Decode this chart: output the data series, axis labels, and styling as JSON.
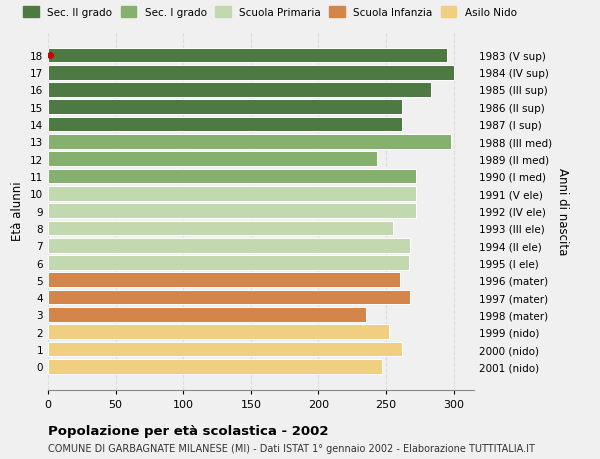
{
  "ages": [
    18,
    17,
    16,
    15,
    14,
    13,
    12,
    11,
    10,
    9,
    8,
    7,
    6,
    5,
    4,
    3,
    2,
    1,
    0
  ],
  "years": [
    "1983 (V sup)",
    "1984 (IV sup)",
    "1985 (III sup)",
    "1986 (II sup)",
    "1987 (I sup)",
    "1988 (III med)",
    "1989 (II med)",
    "1990 (I med)",
    "1991 (V ele)",
    "1992 (IV ele)",
    "1993 (III ele)",
    "1994 (II ele)",
    "1995 (I ele)",
    "1996 (mater)",
    "1997 (mater)",
    "1998 (mater)",
    "1999 (nido)",
    "2000 (nido)",
    "2001 (nido)"
  ],
  "values": [
    295,
    300,
    283,
    262,
    262,
    298,
    243,
    272,
    272,
    272,
    255,
    268,
    267,
    260,
    268,
    235,
    252,
    262,
    247
  ],
  "colors": [
    "#4d7a42",
    "#4d7a42",
    "#4d7a42",
    "#4d7a42",
    "#4d7a42",
    "#85b06e",
    "#85b06e",
    "#85b06e",
    "#c2d9b0",
    "#c2d9b0",
    "#c2d9b0",
    "#c2d9b0",
    "#c2d9b0",
    "#d4854a",
    "#d4854a",
    "#d4854a",
    "#f0d080",
    "#f0d080",
    "#f0d080"
  ],
  "legend_labels": [
    "Sec. II grado",
    "Sec. I grado",
    "Scuola Primaria",
    "Scuola Infanzia",
    "Asilo Nido"
  ],
  "legend_colors": [
    "#4d7a42",
    "#85b06e",
    "#c2d9b0",
    "#d4854a",
    "#f0d080"
  ],
  "ylabel_left": "Età alunni",
  "ylabel_right": "Anni di nascita",
  "title": "Popolazione per età scolastica - 2002",
  "subtitle": "COMUNE DI GARBAGNATE MILANESE (MI) - Dati ISTAT 1° gennaio 2002 - Elaborazione TUTTITALIA.IT",
  "xlim": [
    0,
    315
  ],
  "xticks": [
    0,
    50,
    100,
    150,
    200,
    250,
    300
  ],
  "bg_color": "#f0f0f0",
  "plot_bg_color": "#f0f0f0",
  "grid_color": "#dddddd",
  "dot_color": "#cc0000",
  "dot_age": 18
}
